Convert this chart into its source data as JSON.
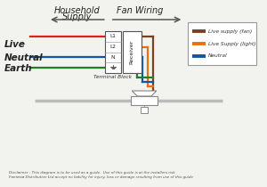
{
  "bg_color": "#f2f2ee",
  "household_label1": "Household",
  "household_label2": "Supply",
  "fan_wiring_label": "Fan Wiring",
  "live_label": "Live",
  "neutral_label": "Neutral",
  "earth_label": "Earth",
  "terminal_label": "Terminal Block",
  "receiver_label": "Receiver",
  "disclaimer": "Disclaimer - This diagram is to be used as a guide.  Use of this guide is at the installers risk\nFantasia Distribution Ltd accept no liability for injury, loss or damage resulting from use of this guide",
  "legend_items": [
    {
      "label": "Live supply (fan)",
      "color": "#7B4020"
    },
    {
      "label": "Live Supply (light)",
      "color": "#E87010"
    },
    {
      "label": "Neutral",
      "color": "#1055AA"
    }
  ],
  "wire_red": "#DD2020",
  "wire_blue": "#1055AA",
  "wire_green": "#208020",
  "wire_brown": "#7B4020",
  "wire_orange": "#E87010",
  "wire_blue2": "#1055AA",
  "wire_green2": "#208020"
}
